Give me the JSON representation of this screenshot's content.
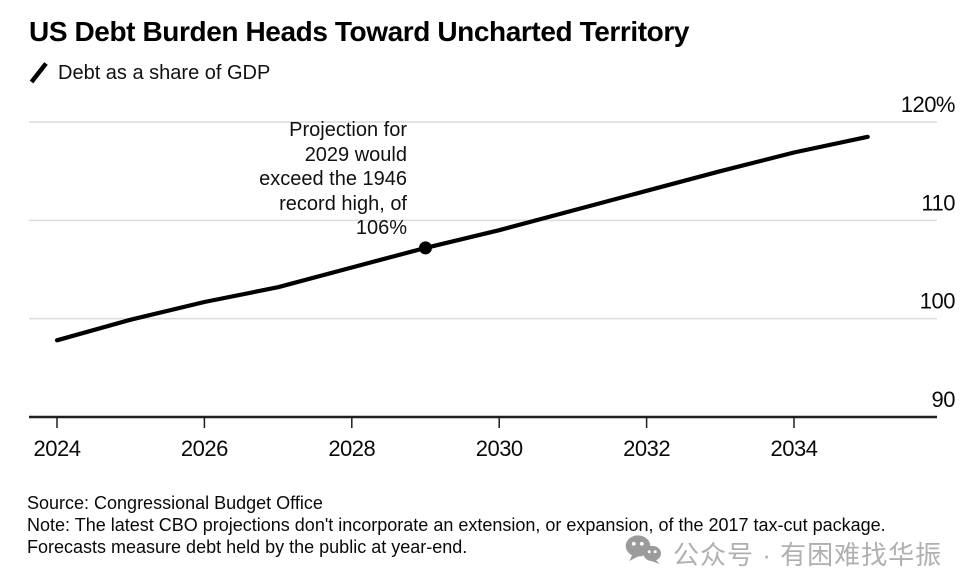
{
  "header": {
    "title": "US Debt Burden Heads Toward Uncharted Territory",
    "legend_label": "Debt as a share of GDP"
  },
  "chart_data": {
    "type": "line",
    "title": "US Debt Burden Heads Toward Uncharted Territory",
    "subtitle": "Debt as a share of GDP",
    "xlabel": "",
    "ylabel": "Debt as a share of GDP (%)",
    "x": [
      2024,
      2025,
      2026,
      2027,
      2028,
      2029,
      2030,
      2031,
      2032,
      2033,
      2034,
      2035
    ],
    "values": [
      97.8,
      99.9,
      101.7,
      103.2,
      105.2,
      107.2,
      109.0,
      111.0,
      113.0,
      115.0,
      116.9,
      118.5
    ],
    "series_name": "Debt as a share of GDP",
    "ylim": [
      90,
      121.5
    ],
    "xlim": [
      2023.62,
      2035.94
    ],
    "grid": "horizontal",
    "y_axis_side": "right",
    "x_ticks": [
      {
        "value": 2024,
        "label": "2024"
      },
      {
        "value": 2026,
        "label": "2026"
      },
      {
        "value": 2028,
        "label": "2028"
      },
      {
        "value": 2030,
        "label": "2030"
      },
      {
        "value": 2032,
        "label": "2032"
      },
      {
        "value": 2034,
        "label": "2034"
      }
    ],
    "y_ticks": [
      {
        "value": 90,
        "label": "90",
        "gridline": false
      },
      {
        "value": 100,
        "label": "100",
        "gridline": true
      },
      {
        "value": 110,
        "label": "110",
        "gridline": true
      },
      {
        "value": 120,
        "label": "120%",
        "gridline": true
      }
    ],
    "annotation": {
      "lines": [
        "Projection for",
        "2029 would",
        "exceed the 1946",
        "record high, of",
        "106%"
      ],
      "marker": {
        "x": 2029,
        "value": 107.2
      }
    },
    "colors": {
      "line": "#000000",
      "grid": "#dcdcdc",
      "axis": "#1f1f1f",
      "tick_label": "#0a0a0a"
    }
  },
  "footer": {
    "source": "Source: Congressional Budget Office",
    "note": "Note: The latest CBO projections don't incorporate an extension, or expansion, of the 2017 tax-cut package. Forecasts measure debt held by the public at year-end."
  },
  "watermark": {
    "icon": "wechat-icon",
    "text": "公众号 · 有困难找华振",
    "color": "#b0b0b0"
  }
}
